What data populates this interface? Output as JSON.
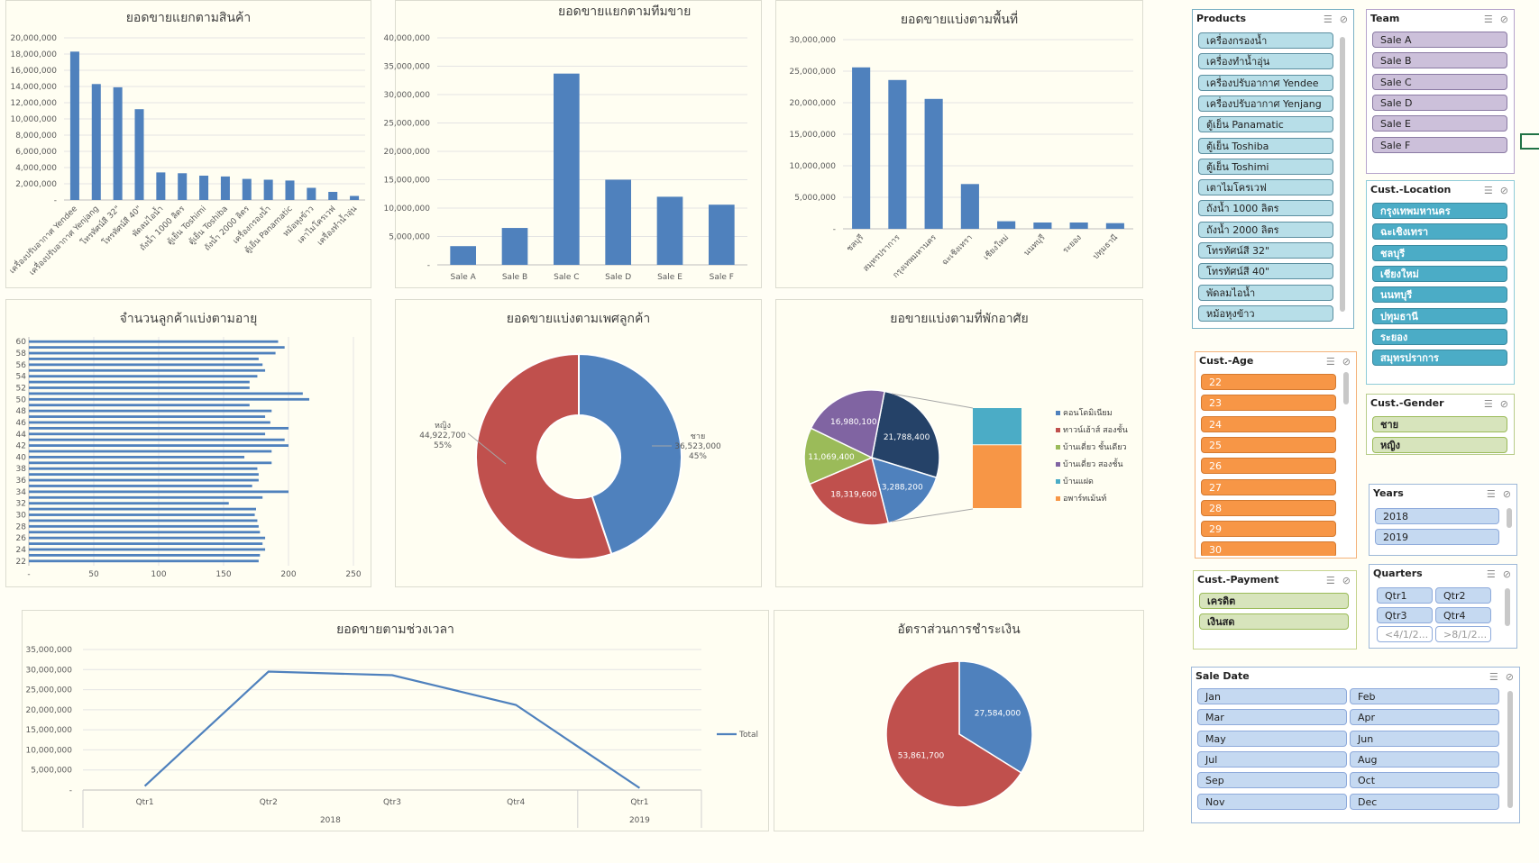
{
  "colors": {
    "blue": "#4f81bd",
    "red": "#c0504d",
    "green": "#9bbb59",
    "purple": "#8064a2",
    "navy": "#254268",
    "teal": "#4bacc6",
    "orange": "#f79646"
  },
  "charts": {
    "product": {
      "title": "ยอดขายแยกตามสินค้า"
    },
    "team": {
      "title": "ยอดขายแยกตามทีมขาย"
    },
    "area": {
      "title": "ยอดขายแบ่งตามพื้นที่"
    },
    "age": {
      "title": "จำนวนลูกค้าแบ่งตามอายุ"
    },
    "gender": {
      "title": "ยอดขายแบ่งตามเพศลูกค้า"
    },
    "residence": {
      "title": "ยอขายแบ่งตามที่พักอาศัย"
    },
    "time": {
      "title": "ยอดขายตามช่วงเวลา"
    },
    "payment": {
      "title": "อัตราส่วนการชำระเงิน"
    }
  },
  "chart_data": [
    {
      "type": "bar",
      "title": "ยอดขายแยกตามสินค้า",
      "categories": [
        "เครื่องปรับอากาศ Yendee",
        "เครื่องปรับอากาศ Yenjang",
        "โทรทัศน์สี 32\"",
        "โทรทัศน์สี 40\"",
        "พัดลมไอน้ำ",
        "ถังน้ำ 1000 ลิตร",
        "ตู้เย็น Toshimi",
        "ตู้เย็น Toshiba",
        "ถังน้ำ 2000 ลิตร",
        "เครื่องกรองน้ำ",
        "ตู้เย็น Panamatic",
        "หม้อหุงข้าว",
        "เตาไมโครเวฟ",
        "เครื่องทำน้ำอุ่น"
      ],
      "values": [
        18300000,
        14300000,
        13900000,
        11200000,
        3400000,
        3300000,
        3000000,
        2900000,
        2600000,
        2500000,
        2400000,
        1500000,
        1000000,
        500000
      ],
      "yticks": [
        "-",
        "2,000,000",
        "4,000,000",
        "6,000,000",
        "8,000,000",
        "10,000,000",
        "12,000,000",
        "14,000,000",
        "16,000,000",
        "18,000,000",
        "20,000,000"
      ],
      "ylim": [
        0,
        20000000
      ]
    },
    {
      "type": "bar",
      "title": "ยอดขายแยกตามทีมขาย",
      "categories": [
        "Sale A",
        "Sale B",
        "Sale C",
        "Sale D",
        "Sale E",
        "Sale F"
      ],
      "values": [
        3300000,
        6500000,
        33700000,
        15000000,
        12000000,
        10600000
      ],
      "yticks": [
        "-",
        "5,000,000",
        "10,000,000",
        "15,000,000",
        "20,000,000",
        "25,000,000",
        "30,000,000",
        "35,000,000",
        "40,000,000"
      ],
      "ylim": [
        0,
        40000000
      ]
    },
    {
      "type": "bar",
      "title": "ยอดขายแบ่งตามพื้นที่",
      "categories": [
        "ชลบุรี",
        "สมุทรปราการ",
        "กรุงเทพมหานคร",
        "ฉะเชิงเทรา",
        "เชียงใหม่",
        "นนทบุรี",
        "ระยอง",
        "ปทุมธานี"
      ],
      "values": [
        25600000,
        23600000,
        20600000,
        7100000,
        1200000,
        1000000,
        1000000,
        900000
      ],
      "yticks": [
        "-",
        "5,000,000",
        "10,000,000",
        "15,000,000",
        "20,000,000",
        "25,000,000",
        "30,000,000"
      ],
      "ylim": [
        0,
        30000000
      ]
    },
    {
      "type": "bar",
      "title": "จำนวนลูกค้าแบ่งตามอายุ",
      "orientation": "horizontal",
      "categories": [
        22,
        23,
        24,
        25,
        26,
        27,
        28,
        29,
        30,
        31,
        32,
        33,
        34,
        35,
        36,
        37,
        38,
        39,
        40,
        41,
        42,
        43,
        44,
        45,
        46,
        47,
        48,
        49,
        50,
        51,
        52,
        53,
        54,
        55,
        56,
        57,
        58,
        59,
        60
      ],
      "ytick_labels": [
        "22",
        "24",
        "26",
        "28",
        "30",
        "32",
        "34",
        "36",
        "38",
        "40",
        "42",
        "44",
        "46",
        "48",
        "50",
        "52",
        "54",
        "56",
        "58",
        "60"
      ],
      "values": [
        177,
        178,
        182,
        180,
        182,
        178,
        177,
        176,
        174,
        175,
        154,
        180,
        200,
        172,
        177,
        177,
        176,
        187,
        166,
        187,
        200,
        197,
        182,
        200,
        186,
        182,
        187,
        170,
        216,
        211,
        170,
        170,
        176,
        182,
        180,
        177,
        190,
        197,
        192
      ],
      "xticks": [
        "-",
        "50",
        "100",
        "150",
        "200",
        "250"
      ],
      "xlim": [
        0,
        250
      ]
    },
    {
      "type": "pie",
      "subtype": "doughnut",
      "title": "ยอดขายแบ่งตามเพศลูกค้า",
      "slices": [
        {
          "label": "ชาย",
          "value": 36523000,
          "value_text": "36,523,000",
          "pct": "45%"
        },
        {
          "label": "หญิง",
          "value": 44922700,
          "value_text": "44,922,700",
          "pct": "55%"
        }
      ]
    },
    {
      "type": "pie",
      "subtype": "pie-of-pie",
      "title": "ยอขายแบ่งตามที่พักอาศัย",
      "slices": [
        {
          "value": 21788400,
          "value_text": "21,788,400"
        },
        {
          "value": 13288200,
          "value_text": "13,288,200"
        },
        {
          "value": 18319600,
          "value_text": "18,319,600"
        },
        {
          "value": 11069400,
          "value_text": "11,069,400"
        },
        {
          "value": 16980100,
          "value_text": "16,980,100"
        }
      ],
      "secondary": [
        {
          "value": 700000
        },
        {
          "value": 1200000
        }
      ],
      "legend": [
        "คอนโดมิเนียม",
        "ทาวน์เฮ้าส์ สองชั้น",
        "บ้านเดี่ยว ชั้นเดียว",
        "บ้านเดี่ยว สองชั้น",
        "บ้านแฝด",
        "อพาร์ทเม้นท์"
      ],
      "legend_position": "right"
    },
    {
      "type": "line",
      "title": "ยอดขายตามช่วงเวลา",
      "x": [
        "Qtr1",
        "Qtr2",
        "Qtr3",
        "Qtr4",
        "Qtr1"
      ],
      "groups": [
        {
          "label": "2018",
          "span": 4
        },
        {
          "label": "2019",
          "span": 1
        }
      ],
      "series": [
        {
          "name": "Total",
          "values": [
            1000000,
            29500000,
            28600000,
            21200000,
            500000
          ]
        }
      ],
      "yticks": [
        "-",
        "5,000,000",
        "10,000,000",
        "15,000,000",
        "20,000,000",
        "25,000,000",
        "30,000,000",
        "35,000,000"
      ],
      "ylim": [
        0,
        35000000
      ],
      "legend_position": "right"
    },
    {
      "type": "pie",
      "title": "อัตราส่วนการชำระเงิน",
      "slices": [
        {
          "value": 27584000,
          "value_text": "27,584,000"
        },
        {
          "value": 53861700,
          "value_text": "53,861,700"
        }
      ]
    }
  ],
  "slicers": {
    "products": {
      "title": "Products",
      "items": [
        "เครื่องกรองน้ำ",
        "เครื่องทำน้ำอุ่น",
        "เครื่องปรับอากาศ  Yendee",
        "เครื่องปรับอากาศ  Yenjang",
        "ตู้เย็น Panamatic",
        "ตู้เย็น Toshiba",
        "ตู้เย็น Toshimi",
        "เตาไมโครเวฟ",
        "ถังน้ำ  1000 ลิตร",
        "ถังน้ำ  2000 ลิตร",
        "โทรทัศน์สี  32\"",
        "โทรทัศน์สี  40\"",
        "พัดลมไอน้ำ",
        "หม้อหุงข้าว"
      ]
    },
    "team": {
      "title": "Team",
      "items": [
        "Sale  A",
        "Sale  B",
        "Sale  C",
        "Sale  D",
        "Sale  E",
        "Sale  F"
      ]
    },
    "location": {
      "title": "Cust.-Location",
      "items": [
        "กรุงเทพมหานคร",
        "ฉะเชิงเทรา",
        "ชลบุรี",
        "เชียงใหม่",
        "นนทบุรี",
        "ปทุมธานี",
        "ระยอง",
        "สมุทรปราการ"
      ]
    },
    "age": {
      "title": "Cust.-Age",
      "items": [
        "22",
        "23",
        "24",
        "25",
        "26",
        "27",
        "28",
        "29",
        "30"
      ]
    },
    "gender": {
      "title": "Cust.-Gender",
      "items": [
        "ชาย",
        "หญิง"
      ]
    },
    "years": {
      "title": "Years",
      "items": [
        "2018",
        "2019"
      ]
    },
    "payment": {
      "title": "Cust.-Payment",
      "items": [
        "เครดิต",
        "เงินสด"
      ]
    },
    "quarters": {
      "title": "Quarters",
      "items": [
        "Qtr1",
        "Qtr2",
        "Qtr3",
        "Qtr4",
        "<4/1/2...",
        ">8/1/2..."
      ]
    },
    "saledate": {
      "title": "Sale Date",
      "items": [
        "Jan",
        "Feb",
        "Mar",
        "Apr",
        "May",
        "Jun",
        "Jul",
        "Aug",
        "Sep",
        "Oct",
        "Nov",
        "Dec"
      ]
    }
  },
  "icons": {
    "multiselect": "multi-select-icon",
    "clear": "clear-filter-icon"
  }
}
